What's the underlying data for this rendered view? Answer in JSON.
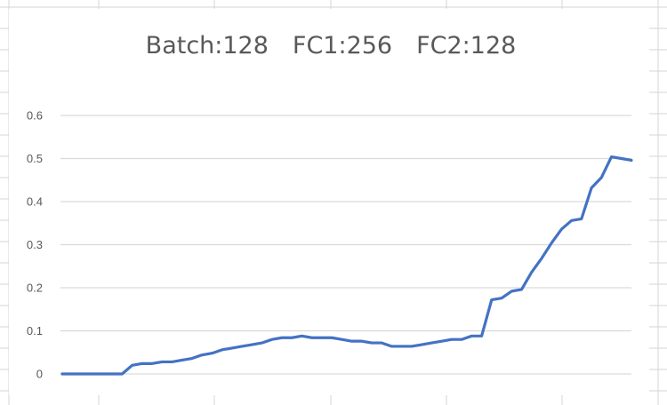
{
  "chart_data": {
    "type": "line",
    "title": "Batch:128 FC1:256 FC2:128",
    "xlabel": "",
    "ylabel": "",
    "ylim": [
      0,
      0.6
    ],
    "yticks": [
      "0",
      "0.1",
      "0.2",
      "0.3",
      "0.4",
      "0.5",
      "0.6"
    ],
    "grid": true,
    "legend": "none",
    "series": [
      {
        "color": "#4472C4",
        "values": [
          0,
          0,
          0,
          0,
          0,
          0,
          0,
          0.02,
          0.024,
          0.024,
          0.028,
          0.028,
          0.032,
          0.036,
          0.044,
          0.048,
          0.056,
          0.06,
          0.064,
          0.068,
          0.072,
          0.08,
          0.084,
          0.084,
          0.088,
          0.084,
          0.084,
          0.084,
          0.08,
          0.076,
          0.076,
          0.072,
          0.072,
          0.064,
          0.064,
          0.064,
          0.068,
          0.072,
          0.076,
          0.08,
          0.08,
          0.088,
          0.088,
          0.172,
          0.176,
          0.192,
          0.196,
          0.236,
          0.268,
          0.304,
          0.336,
          0.356,
          0.36,
          0.432,
          0.456,
          0.504,
          0.5,
          0.496
        ]
      }
    ]
  },
  "colors": {
    "line": "#4472C4",
    "gridline": "#d9d9d9",
    "sheet_grid": "#d4d4d4",
    "text": "#595959"
  }
}
